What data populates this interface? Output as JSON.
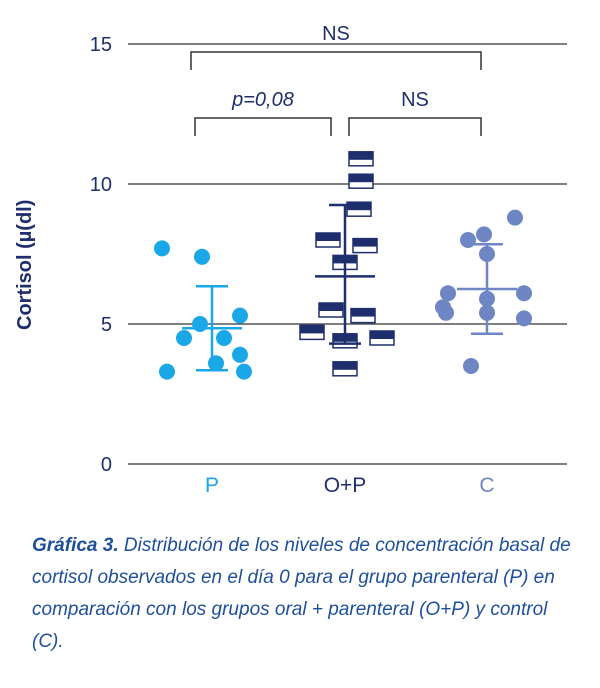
{
  "chart_data": {
    "type": "scatter",
    "ylabel": "Cortisol (µ(dl)",
    "ylim": [
      0,
      15
    ],
    "yticks": [
      "0",
      "5",
      "10",
      "15"
    ],
    "grid": true,
    "categories": [
      "P",
      "O+P",
      "C"
    ],
    "colors": {
      "P": "#1aa7e8",
      "O+P": "#1f2f6e",
      "C": "#6f86c4"
    },
    "series": [
      {
        "category": "P",
        "marker": "circle",
        "values": [
          7.7,
          7.4,
          5.3,
          5.0,
          4.5,
          4.5,
          3.9,
          3.6,
          3.3,
          3.3
        ],
        "mean": 4.85,
        "sd_low": 3.35,
        "sd_high": 6.35
      },
      {
        "category": "O+P",
        "marker": "square",
        "values": [
          10.9,
          10.1,
          9.1,
          8.0,
          7.8,
          7.2,
          5.5,
          5.3,
          4.7,
          4.5,
          4.4,
          3.4
        ],
        "mean": 6.7,
        "sd_low": 4.3,
        "sd_high": 9.25
      },
      {
        "category": "C",
        "marker": "circle",
        "values": [
          8.8,
          8.2,
          8.0,
          7.5,
          6.1,
          6.1,
          5.9,
          5.6,
          5.4,
          5.4,
          5.2,
          3.5
        ],
        "mean": 6.25,
        "sd_low": 4.65,
        "sd_high": 7.85
      }
    ],
    "comparisons": [
      {
        "from": "P",
        "to": "C",
        "label": "NS",
        "level": 1
      },
      {
        "from": "P",
        "to": "O+P",
        "label": "p=0,08",
        "italic": true,
        "level": 2
      },
      {
        "from": "O+P",
        "to": "C",
        "label": "NS",
        "level": 2
      }
    ]
  },
  "caption": {
    "lead": "Gráfica 3.",
    "text": " Distribución de los niveles de concentración basal de cortisol observados en el día 0 para el grupo parenteral (P) en comparación con los grupos oral + parenteral (O+P) y control (C)."
  }
}
